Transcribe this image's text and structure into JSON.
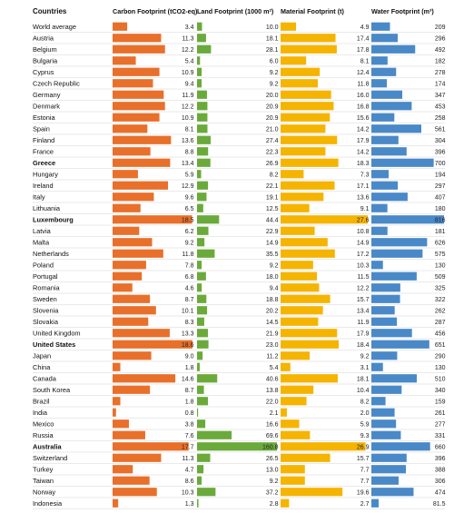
{
  "chart_data": {
    "type": "table",
    "row_header_label": "Countries",
    "metrics": [
      {
        "key": "carbon",
        "label": "Carbon Footprint (tCO2-eq)",
        "color": "#e8702a",
        "max": 18.6
      },
      {
        "key": "land",
        "label": "Land Footprint (1000 m²)",
        "color": "#6aaa3a",
        "max": 160.8
      },
      {
        "key": "material",
        "label": "Material Footprint (t)",
        "color": "#f5b400",
        "max": 27.6
      },
      {
        "key": "water",
        "label": "Water Footprint (m³)",
        "color": "#4a89c8",
        "max": 816
      }
    ],
    "highlight_countries": [
      "Luxembourg",
      "United States",
      "Australia",
      "Greece"
    ],
    "rows": [
      {
        "country": "World average",
        "carbon": "3.4",
        "land": "10.0",
        "material": "4.9",
        "water": "209"
      },
      {
        "country": "Austria",
        "carbon": "11.3",
        "land": "18.1",
        "material": "17.4",
        "water": "296"
      },
      {
        "country": "Belgium",
        "carbon": "12.2",
        "land": "28.1",
        "material": "17.8",
        "water": "492"
      },
      {
        "country": "Bulgaria",
        "carbon": "5.4",
        "land": "6.0",
        "material": "8.1",
        "water": "182"
      },
      {
        "country": "Cyprus",
        "carbon": "10.9",
        "land": "9.2",
        "material": "12.4",
        "water": "278"
      },
      {
        "country": "Czech Republic",
        "carbon": "9.4",
        "land": "9.2",
        "material": "11.8",
        "water": "174"
      },
      {
        "country": "Germany",
        "carbon": "11.9",
        "land": "20.0",
        "material": "16.0",
        "water": "347"
      },
      {
        "country": "Denmark",
        "carbon": "12.2",
        "land": "20.9",
        "material": "16.8",
        "water": "453"
      },
      {
        "country": "Estonia",
        "carbon": "10.9",
        "land": "20.9",
        "material": "15.6",
        "water": "258"
      },
      {
        "country": "Spain",
        "carbon": "8.1",
        "land": "21.0",
        "material": "14.2",
        "water": "561"
      },
      {
        "country": "Finland",
        "carbon": "13.6",
        "land": "27.4",
        "material": "17.9",
        "water": "304"
      },
      {
        "country": "France",
        "carbon": "8.8",
        "land": "22.3",
        "material": "14.2",
        "water": "396"
      },
      {
        "country": "Greece",
        "carbon": "13.4",
        "land": "26.9",
        "material": "18.3",
        "water": "700"
      },
      {
        "country": "Hungary",
        "carbon": "5.9",
        "land": "8.2",
        "material": "7.3",
        "water": "194"
      },
      {
        "country": "Ireland",
        "carbon": "12.9",
        "land": "22.1",
        "material": "17.1",
        "water": "297"
      },
      {
        "country": "Italy",
        "carbon": "9.6",
        "land": "19.1",
        "material": "13.6",
        "water": "407"
      },
      {
        "country": "Lithuania",
        "carbon": "6.5",
        "land": "12.5",
        "material": "9.1",
        "water": "180"
      },
      {
        "country": "Luxembourg",
        "carbon": "18.5",
        "land": "44.4",
        "material": "27.6",
        "water": "816"
      },
      {
        "country": "Latvia",
        "carbon": "6.2",
        "land": "22.9",
        "material": "10.8",
        "water": "181"
      },
      {
        "country": "Malta",
        "carbon": "9.2",
        "land": "14.9",
        "material": "14.9",
        "water": "626"
      },
      {
        "country": "Netherlands",
        "carbon": "11.8",
        "land": "35.5",
        "material": "17.2",
        "water": "575"
      },
      {
        "country": "Poland",
        "carbon": "7.8",
        "land": "9.2",
        "material": "10.3",
        "water": "130"
      },
      {
        "country": "Portugal",
        "carbon": "6.8",
        "land": "18.0",
        "material": "11.5",
        "water": "509"
      },
      {
        "country": "Romania",
        "carbon": "4.6",
        "land": "9.4",
        "material": "12.2",
        "water": "325"
      },
      {
        "country": "Sweden",
        "carbon": "8.7",
        "land": "18.8",
        "material": "15.7",
        "water": "322"
      },
      {
        "country": "Slovenia",
        "carbon": "10.1",
        "land": "20.2",
        "material": "13.4",
        "water": "262"
      },
      {
        "country": "Slovakia",
        "carbon": "8.3",
        "land": "14.5",
        "material": "11.9",
        "water": "287"
      },
      {
        "country": "United Kingdom",
        "carbon": "13.3",
        "land": "21.9",
        "material": "17.9",
        "water": "456"
      },
      {
        "country": "United States",
        "carbon": "18.6",
        "land": "23.0",
        "material": "18.4",
        "water": "651"
      },
      {
        "country": "Japan",
        "carbon": "9.0",
        "land": "11.2",
        "material": "9.2",
        "water": "290"
      },
      {
        "country": "China",
        "carbon": "1.8",
        "land": "5.4",
        "material": "3.1",
        "water": "130"
      },
      {
        "country": "Canada",
        "carbon": "14.6",
        "land": "40.6",
        "material": "18.1",
        "water": "510"
      },
      {
        "country": "South Korea",
        "carbon": "8.7",
        "land": "13.8",
        "material": "10.4",
        "water": "340"
      },
      {
        "country": "Brazil",
        "carbon": "1.8",
        "land": "22.0",
        "material": "8.2",
        "water": "159"
      },
      {
        "country": "India",
        "carbon": "0.8",
        "land": "2.1",
        "material": "2.0",
        "water": "261"
      },
      {
        "country": "Mexico",
        "carbon": "3.8",
        "land": "16.6",
        "material": "5.9",
        "water": "277"
      },
      {
        "country": "Russia",
        "carbon": "7.6",
        "land": "69.6",
        "material": "9.3",
        "water": "331"
      },
      {
        "country": "Australia",
        "carbon": "17.7",
        "land": "160.8",
        "material": "26.9",
        "water": "660"
      },
      {
        "country": "Switzerland",
        "carbon": "11.3",
        "land": "26.5",
        "material": "15.7",
        "water": "396"
      },
      {
        "country": "Turkey",
        "carbon": "4.7",
        "land": "13.0",
        "material": "7.7",
        "water": "388"
      },
      {
        "country": "Taiwan",
        "carbon": "8.6",
        "land": "9.2",
        "material": "7.7",
        "water": "306"
      },
      {
        "country": "Norway",
        "carbon": "10.3",
        "land": "37.2",
        "material": "19.6",
        "water": "474"
      },
      {
        "country": "Indonesia",
        "carbon": "1.3",
        "land": "2.8",
        "material": "2.7",
        "water": "81.5"
      }
    ]
  }
}
